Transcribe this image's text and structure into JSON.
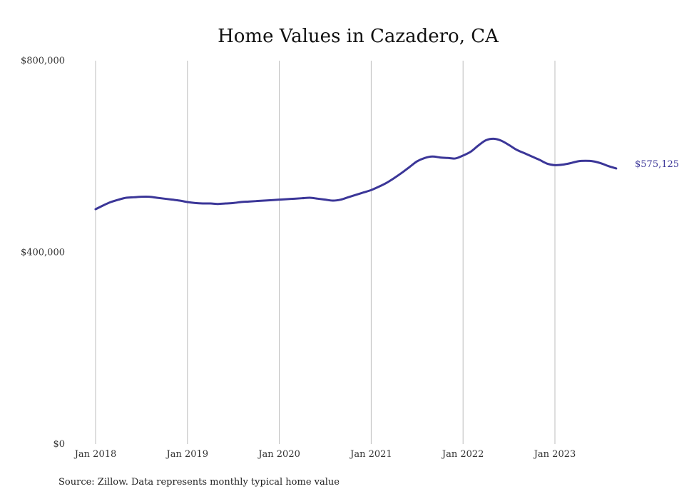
{
  "chart_data": {
    "type": "line",
    "title": "Home Values in Cazadero, CA",
    "xlabel": "",
    "ylabel": "",
    "x_start": "Jan 2018",
    "x_end": "Oct 2023",
    "x_ticks": [
      "Jan 2018",
      "Jan 2019",
      "Jan 2020",
      "Jan 2021",
      "Jan 2022",
      "Jan 2023"
    ],
    "y_ticks": [
      "$0",
      "$400,000",
      "$800,000"
    ],
    "ylim": [
      0,
      800000
    ],
    "grid": "vertical",
    "color": "#3b3698",
    "end_label": "$575,125",
    "series": [
      {
        "values": [
          490000,
          498000,
          505000,
          510000,
          514000,
          515000,
          516000,
          516000,
          514000,
          512000,
          510000,
          508000,
          505000,
          503000,
          502000,
          502000,
          501000,
          502000,
          503000,
          505000,
          506000,
          507000,
          508000,
          509000,
          510000,
          511000,
          512000,
          513000,
          514000,
          512000,
          510000,
          508000,
          510000,
          515000,
          520000,
          525000,
          530000,
          537000,
          545000,
          555000,
          566000,
          578000,
          590000,
          597000,
          600000,
          598000,
          597000,
          596000,
          602000,
          610000,
          623000,
          634000,
          637000,
          633000,
          624000,
          614000,
          607000,
          600000,
          593000,
          585000,
          582000,
          583000,
          586000,
          590000,
          591000,
          590000,
          586000,
          580000,
          575125
        ]
      }
    ]
  },
  "source_text": "Source: Zillow. Data represents monthly typical home value"
}
